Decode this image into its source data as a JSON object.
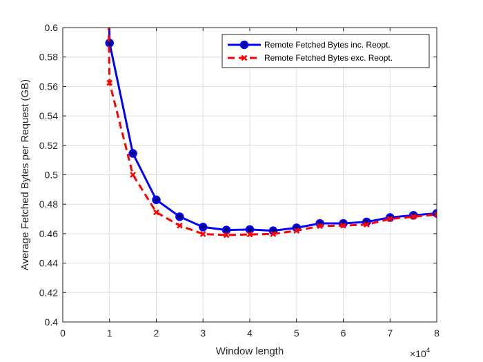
{
  "chart_data": {
    "type": "line",
    "title": "",
    "xlabel": "Window length",
    "ylabel": "Average Fetched Bytes per Request (GB)",
    "x_exponent_label": "×10",
    "x_exponent_power": "4",
    "x_scale": 10000,
    "xlim": [
      0,
      80000
    ],
    "ylim": [
      0.4,
      0.6
    ],
    "xticks": [
      0,
      10000,
      20000,
      30000,
      40000,
      50000,
      60000,
      70000,
      80000
    ],
    "xtick_labels": [
      "0",
      "1",
      "2",
      "3",
      "4",
      "5",
      "6",
      "7",
      "8"
    ],
    "yticks": [
      0.4,
      0.42,
      0.44,
      0.46,
      0.48,
      0.5,
      0.52,
      0.54,
      0.56,
      0.58,
      0.6
    ],
    "ytick_labels": [
      "0.4",
      "0.42",
      "0.44",
      "0.46",
      "0.48",
      "0.5",
      "0.52",
      "0.54",
      "0.56",
      "0.58",
      "0.6"
    ],
    "grid": true,
    "legend_position": "top-right",
    "series": [
      {
        "name": "Remote Fetched Bytes inc. Reopt.",
        "color": "#0000ff",
        "marker_face": "#000080",
        "line_style": "solid",
        "marker": "circle",
        "clip_start": {
          "x": 9500,
          "y": 0.7
        },
        "x": [
          10000,
          15000,
          20000,
          25000,
          30000,
          35000,
          40000,
          45000,
          50000,
          55000,
          60000,
          65000,
          70000,
          75000,
          80000
        ],
        "y": [
          0.5895,
          0.5145,
          0.483,
          0.4715,
          0.4645,
          0.4625,
          0.4628,
          0.462,
          0.464,
          0.467,
          0.467,
          0.468,
          0.471,
          0.4725,
          0.4738
        ]
      },
      {
        "name": "Remote Fetched Bytes exc. Reopt.",
        "color": "#ff0000",
        "marker_face": "#ff0000",
        "line_style": "dashed",
        "marker": "x",
        "clip_start": {
          "x": 9300,
          "y": 0.7
        },
        "x": [
          10000,
          15000,
          20000,
          25000,
          30000,
          35000,
          40000,
          45000,
          50000,
          55000,
          60000,
          65000,
          70000,
          75000,
          80000
        ],
        "y": [
          0.5625,
          0.5,
          0.4745,
          0.4655,
          0.4598,
          0.459,
          0.4595,
          0.4598,
          0.462,
          0.4652,
          0.4655,
          0.4662,
          0.47,
          0.4715,
          0.473
        ]
      }
    ]
  }
}
